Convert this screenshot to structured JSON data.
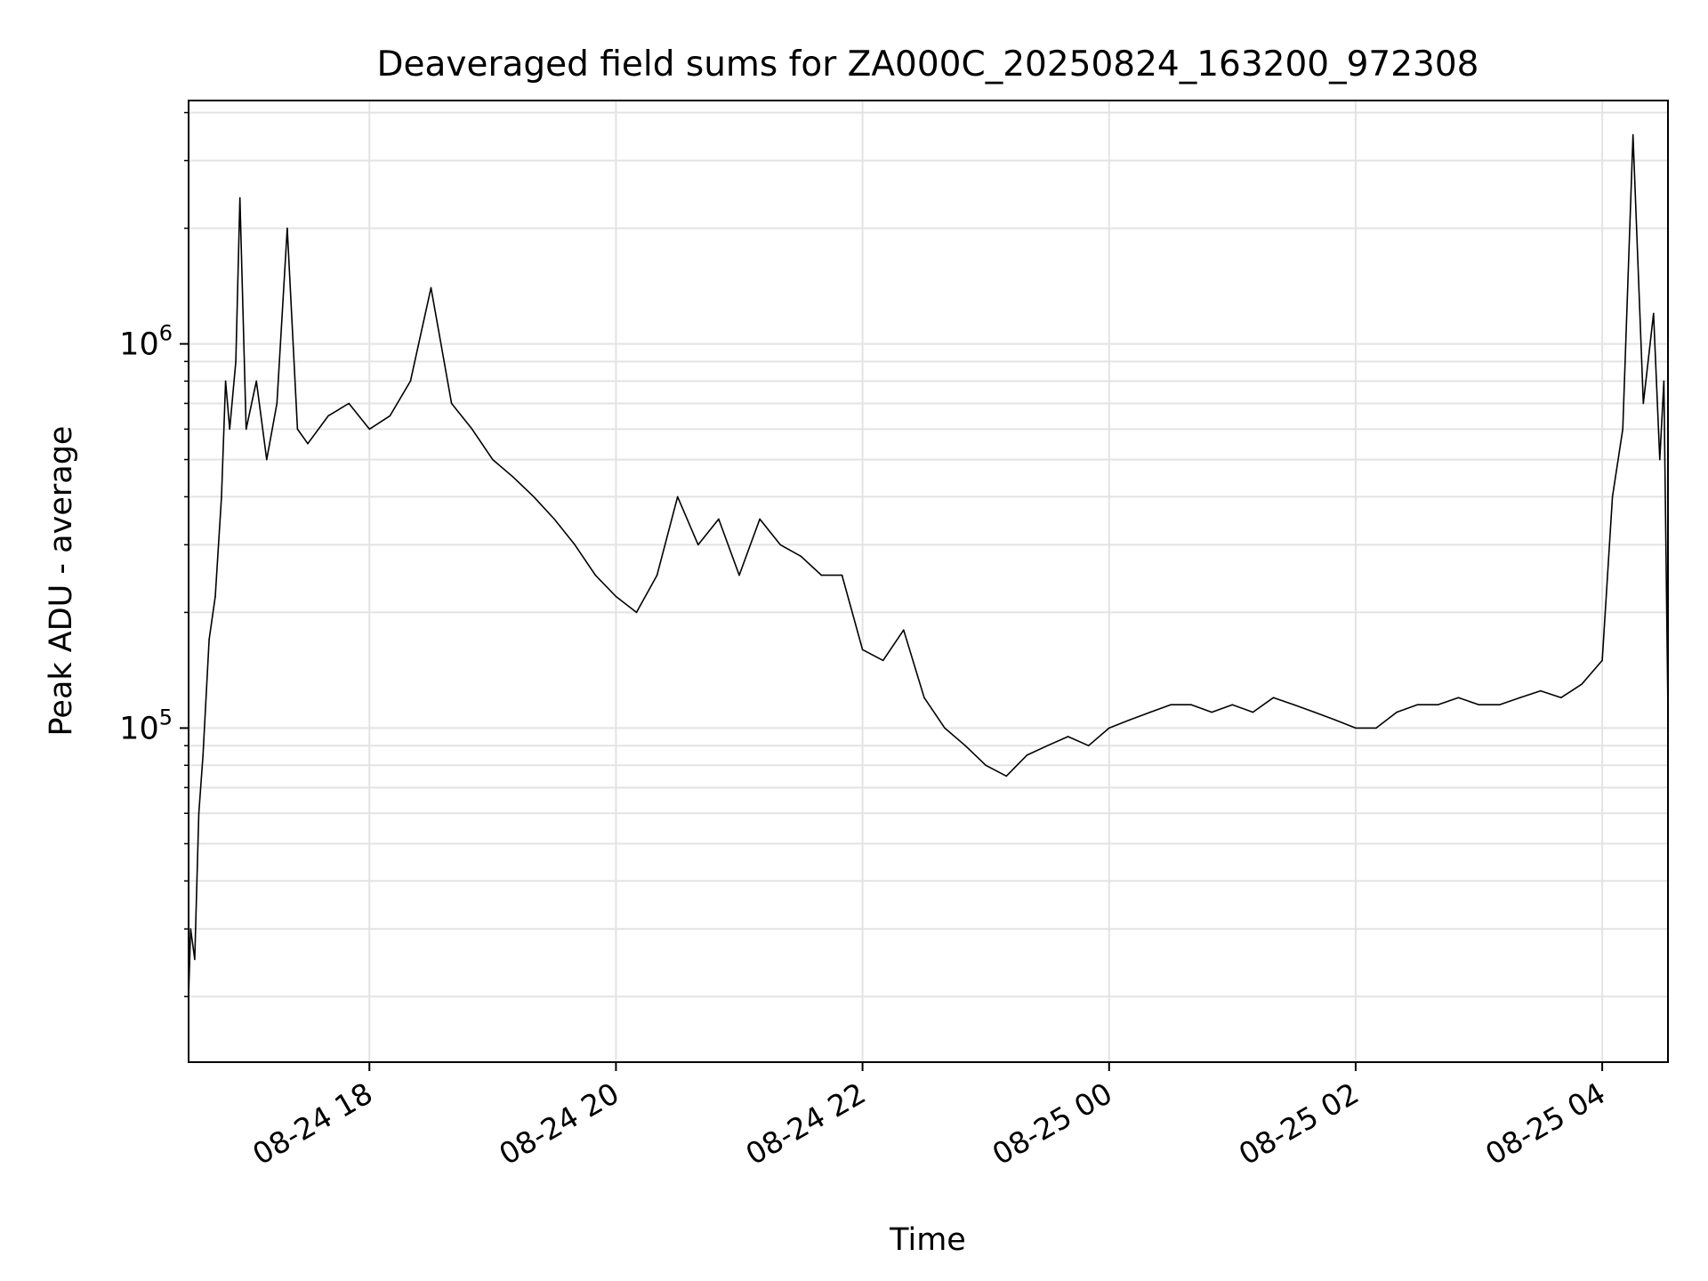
{
  "chart_data": {
    "type": "line",
    "title": "Deaveraged field sums for ZA000C_20250824_163200_972308",
    "xlabel": "Time",
    "ylabel": "Peak ADU - average",
    "yscale": "log",
    "xlim": [
      "2025-08-24 16:32",
      "2025-08-25 04:32"
    ],
    "ylim": [
      13500,
      4300000
    ],
    "x_ticks": [
      {
        "value": "2025-08-24 18:00",
        "label": "08-24 18"
      },
      {
        "value": "2025-08-24 20:00",
        "label": "08-24 20"
      },
      {
        "value": "2025-08-24 22:00",
        "label": "08-24 22"
      },
      {
        "value": "2025-08-25 00:00",
        "label": "08-25 00"
      },
      {
        "value": "2025-08-25 02:00",
        "label": "08-25 02"
      },
      {
        "value": "2025-08-25 04:00",
        "label": "08-25 04"
      }
    ],
    "y_ticks": [
      {
        "value": 100000,
        "base": "10",
        "exp": "5"
      },
      {
        "value": 1000000,
        "base": "10",
        "exp": "6"
      }
    ],
    "grid": true,
    "line_color": "#000000",
    "grid_color": "#e3e3e3",
    "series": [
      {
        "x": [
          "2025-08-24 16:32",
          "2025-08-24 16:33",
          "2025-08-24 16:35",
          "2025-08-24 16:37",
          "2025-08-24 16:39",
          "2025-08-24 16:42",
          "2025-08-24 16:45",
          "2025-08-24 16:48",
          "2025-08-24 16:50",
          "2025-08-24 16:52",
          "2025-08-24 16:55",
          "2025-08-24 16:57",
          "2025-08-24 17:00",
          "2025-08-24 17:05",
          "2025-08-24 17:10",
          "2025-08-24 17:15",
          "2025-08-24 17:20",
          "2025-08-24 17:25",
          "2025-08-24 17:30",
          "2025-08-24 17:40",
          "2025-08-24 17:50",
          "2025-08-24 18:00",
          "2025-08-24 18:10",
          "2025-08-24 18:20",
          "2025-08-24 18:30",
          "2025-08-24 18:40",
          "2025-08-24 18:50",
          "2025-08-24 19:00",
          "2025-08-24 19:10",
          "2025-08-24 19:20",
          "2025-08-24 19:30",
          "2025-08-24 19:40",
          "2025-08-24 19:50",
          "2025-08-24 20:00",
          "2025-08-24 20:10",
          "2025-08-24 20:20",
          "2025-08-24 20:30",
          "2025-08-24 20:40",
          "2025-08-24 20:50",
          "2025-08-24 21:00",
          "2025-08-24 21:10",
          "2025-08-24 21:20",
          "2025-08-24 21:30",
          "2025-08-24 21:40",
          "2025-08-24 21:50",
          "2025-08-24 22:00",
          "2025-08-24 22:10",
          "2025-08-24 22:20",
          "2025-08-24 22:30",
          "2025-08-24 22:40",
          "2025-08-24 22:50",
          "2025-08-24 23:00",
          "2025-08-24 23:10",
          "2025-08-24 23:20",
          "2025-08-24 23:30",
          "2025-08-24 23:40",
          "2025-08-24 23:50",
          "2025-08-25 00:00",
          "2025-08-25 00:10",
          "2025-08-25 00:20",
          "2025-08-25 00:30",
          "2025-08-25 00:40",
          "2025-08-25 00:50",
          "2025-08-25 01:00",
          "2025-08-25 01:10",
          "2025-08-25 01:20",
          "2025-08-25 01:30",
          "2025-08-25 01:40",
          "2025-08-25 01:50",
          "2025-08-25 02:00",
          "2025-08-25 02:10",
          "2025-08-25 02:20",
          "2025-08-25 02:30",
          "2025-08-25 02:40",
          "2025-08-25 02:50",
          "2025-08-25 03:00",
          "2025-08-25 03:10",
          "2025-08-25 03:20",
          "2025-08-25 03:30",
          "2025-08-25 03:40",
          "2025-08-25 03:50",
          "2025-08-25 04:00",
          "2025-08-25 04:05",
          "2025-08-25 04:10",
          "2025-08-25 04:15",
          "2025-08-25 04:20",
          "2025-08-25 04:25",
          "2025-08-25 04:28",
          "2025-08-25 04:30",
          "2025-08-25 04:32"
        ],
        "y": [
          20000,
          30000,
          25000,
          60000,
          85000,
          170000,
          220000,
          400000,
          800000,
          600000,
          900000,
          2400000,
          600000,
          800000,
          500000,
          700000,
          2000000,
          600000,
          550000,
          650000,
          700000,
          600000,
          650000,
          800000,
          1400000,
          700000,
          600000,
          500000,
          450000,
          400000,
          350000,
          300000,
          250000,
          220000,
          200000,
          250000,
          400000,
          300000,
          350000,
          250000,
          350000,
          300000,
          280000,
          250000,
          250000,
          160000,
          150000,
          180000,
          120000,
          100000,
          90000,
          80000,
          75000,
          85000,
          90000,
          95000,
          90000,
          100000,
          105000,
          110000,
          115000,
          115000,
          110000,
          115000,
          110000,
          120000,
          115000,
          110000,
          105000,
          100000,
          100000,
          110000,
          115000,
          115000,
          120000,
          115000,
          115000,
          120000,
          125000,
          120000,
          130000,
          150000,
          400000,
          600000,
          3500000,
          700000,
          1200000,
          500000,
          800000,
          110000
        ]
      }
    ]
  }
}
